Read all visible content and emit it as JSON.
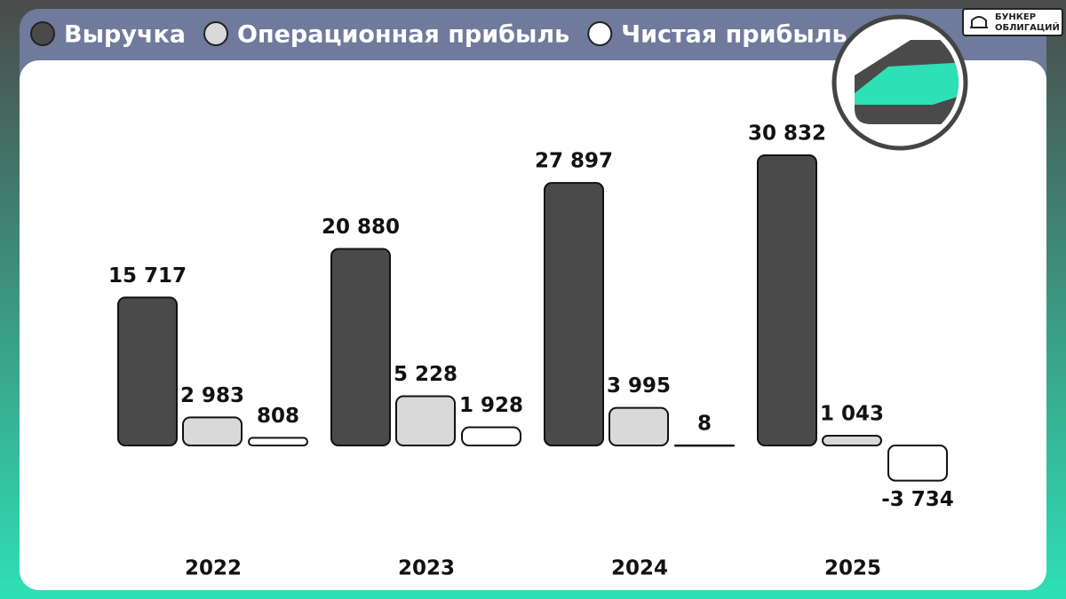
{
  "brand": [
    "БУНКЕР",
    "ОБЛИГАЦИЙ"
  ],
  "chart_data": {
    "type": "bar",
    "categories": [
      "2022",
      "2023",
      "2024",
      "2025"
    ],
    "series": [
      {
        "name": "Выручка",
        "color": "#4a4a4a",
        "values": [
          15717,
          20880,
          27897,
          30832
        ],
        "value_labels": [
          "15 717",
          "20 880",
          "27 897",
          "30 832"
        ]
      },
      {
        "name": "Операционная прибыль",
        "color": "#d9d9d9",
        "values": [
          2983,
          5228,
          3995,
          1043
        ],
        "value_labels": [
          "2 983",
          "5 228",
          "3 995",
          "1 043"
        ]
      },
      {
        "name": "Чистая прибыль",
        "color": "#ffffff",
        "values": [
          808,
          1928,
          8,
          -3734
        ],
        "value_labels": [
          "808",
          "1 928",
          "8",
          "-3 734"
        ]
      }
    ]
  }
}
